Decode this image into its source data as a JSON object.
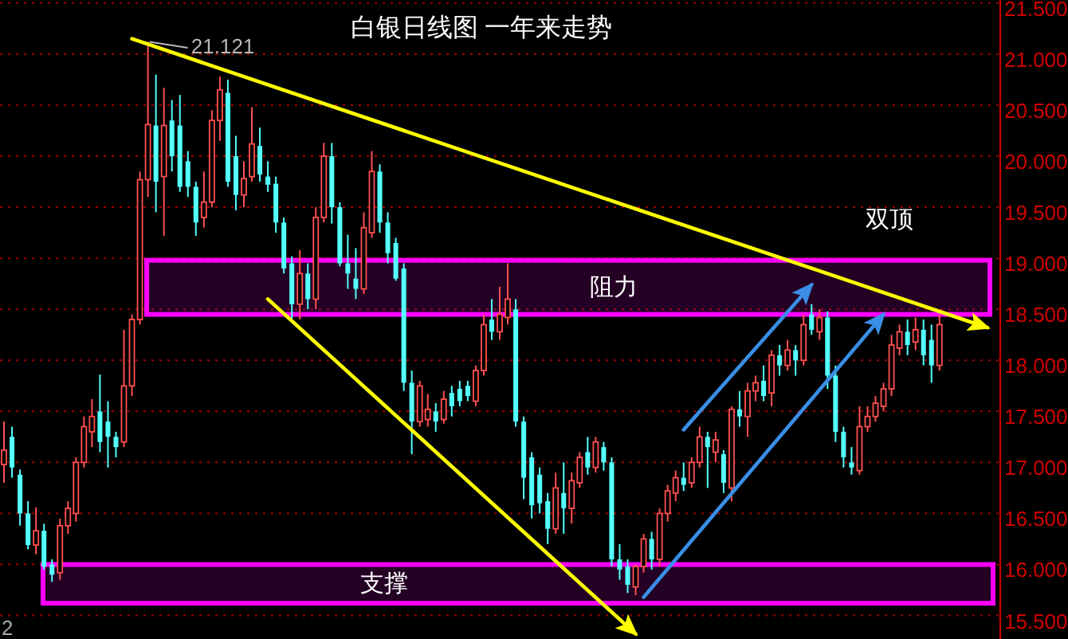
{
  "chart_data": {
    "type": "candlestick",
    "title": "白银日线图 一年来走势",
    "categories": [
      null,
      null,
      null,
      null,
      null,
      null,
      null,
      null,
      null,
      null,
      null,
      null,
      null,
      null,
      null,
      null,
      null,
      null,
      null,
      null,
      null,
      null,
      null,
      null,
      null,
      null,
      null,
      null,
      null,
      null,
      null,
      null,
      null,
      null,
      null,
      null,
      null,
      null,
      null,
      null,
      null,
      null,
      null,
      null,
      null,
      null,
      null,
      null,
      null,
      null,
      null,
      null,
      null,
      null,
      null,
      null,
      null,
      null,
      null,
      null,
      null,
      null,
      null,
      null,
      null,
      null,
      null,
      null,
      null,
      null,
      null,
      null,
      null,
      null,
      null,
      null,
      null,
      null,
      null,
      null,
      null,
      null,
      null,
      null,
      null,
      null,
      null,
      null,
      null,
      null,
      null,
      null,
      null,
      null,
      null,
      null,
      null,
      null,
      null,
      null,
      null,
      null,
      null,
      null,
      null,
      null,
      null,
      null,
      null,
      null,
      null,
      null,
      null,
      null,
      null,
      null,
      null,
      null,
      null,
      null,
      null,
      null,
      null,
      null,
      null
    ],
    "ohlc": [
      [
        16.98,
        17.4,
        16.8,
        17.12
      ],
      [
        17.25,
        17.35,
        16.85,
        16.95
      ],
      [
        16.88,
        16.93,
        16.38,
        16.5
      ],
      [
        16.5,
        16.62,
        16.15,
        16.19
      ],
      [
        16.19,
        16.56,
        16.1,
        16.33
      ],
      [
        16.33,
        16.4,
        15.95,
        15.98
      ],
      [
        16.0,
        16.05,
        15.83,
        15.9
      ],
      [
        15.92,
        16.45,
        15.85,
        16.38
      ],
      [
        16.38,
        16.62,
        16.3,
        16.55
      ],
      [
        16.5,
        17.05,
        16.42,
        17.0
      ],
      [
        17.0,
        17.45,
        16.95,
        17.35
      ],
      [
        17.3,
        17.62,
        17.15,
        17.45
      ],
      [
        17.5,
        17.86,
        17.1,
        17.2
      ],
      [
        17.4,
        17.6,
        16.95,
        17.25
      ],
      [
        17.25,
        17.3,
        17.05,
        17.15
      ],
      [
        17.2,
        18.3,
        17.15,
        17.75
      ],
      [
        17.75,
        18.45,
        17.65,
        18.4
      ],
      [
        18.4,
        19.85,
        18.35,
        19.77
      ],
      [
        19.77,
        21.121,
        19.6,
        20.31
      ],
      [
        20.3,
        20.8,
        19.45,
        19.75
      ],
      [
        19.8,
        20.67,
        19.22,
        20.3
      ],
      [
        20.35,
        20.55,
        19.85,
        20.0
      ],
      [
        20.3,
        20.6,
        19.65,
        19.7
      ],
      [
        19.95,
        20.05,
        19.6,
        19.7
      ],
      [
        19.7,
        19.75,
        19.22,
        19.35
      ],
      [
        19.4,
        19.85,
        19.3,
        19.55
      ],
      [
        19.55,
        20.45,
        19.5,
        20.35
      ],
      [
        20.35,
        20.78,
        20.15,
        20.65
      ],
      [
        20.62,
        20.75,
        19.7,
        19.75
      ],
      [
        20.0,
        20.2,
        19.47,
        19.62
      ],
      [
        19.62,
        19.95,
        19.5,
        19.78
      ],
      [
        19.8,
        20.48,
        19.75,
        20.12
      ],
      [
        20.1,
        20.28,
        19.75,
        19.82
      ],
      [
        19.8,
        19.95,
        19.65,
        19.72
      ],
      [
        19.73,
        19.8,
        19.25,
        19.35
      ],
      [
        19.35,
        19.4,
        18.85,
        18.9
      ],
      [
        18.95,
        19.02,
        18.4,
        18.55
      ],
      [
        18.55,
        19.08,
        18.4,
        18.85
      ],
      [
        18.85,
        18.95,
        18.5,
        18.6
      ],
      [
        18.6,
        19.5,
        18.5,
        19.4
      ],
      [
        19.4,
        20.13,
        19.35,
        20.0
      ],
      [
        20.0,
        20.13,
        19.34,
        19.5
      ],
      [
        19.5,
        19.55,
        18.92,
        18.95
      ],
      [
        18.95,
        19.23,
        18.7,
        18.85
      ],
      [
        18.8,
        19.1,
        18.6,
        18.7
      ],
      [
        18.7,
        19.45,
        18.65,
        19.3
      ],
      [
        19.25,
        20.05,
        19.2,
        19.85
      ],
      [
        19.85,
        19.92,
        19.25,
        19.35
      ],
      [
        19.35,
        19.45,
        18.95,
        19.05
      ],
      [
        19.15,
        19.2,
        18.78,
        18.8
      ],
      [
        18.9,
        18.95,
        17.7,
        17.78
      ],
      [
        17.78,
        17.9,
        17.08,
        17.4
      ],
      [
        17.4,
        17.8,
        17.35,
        17.75
      ],
      [
        17.42,
        17.67,
        17.35,
        17.52
      ],
      [
        17.5,
        17.58,
        17.3,
        17.4
      ],
      [
        17.42,
        17.7,
        17.38,
        17.62
      ],
      [
        17.68,
        17.75,
        17.45,
        17.55
      ],
      [
        17.72,
        17.8,
        17.55,
        17.6
      ],
      [
        17.75,
        17.8,
        17.6,
        17.65
      ],
      [
        17.6,
        17.95,
        17.55,
        17.9
      ],
      [
        17.9,
        18.45,
        17.85,
        18.35
      ],
      [
        18.4,
        18.6,
        18.2,
        18.28
      ],
      [
        18.28,
        18.72,
        18.2,
        18.45
      ],
      [
        18.42,
        18.95,
        18.35,
        18.6
      ],
      [
        18.5,
        18.6,
        17.35,
        17.4
      ],
      [
        17.4,
        17.45,
        16.64,
        16.85
      ],
      [
        17.05,
        17.1,
        16.45,
        16.58
      ],
      [
        16.88,
        16.95,
        16.5,
        16.6
      ],
      [
        16.62,
        16.7,
        16.2,
        16.35
      ],
      [
        16.35,
        16.9,
        16.3,
        16.75
      ],
      [
        16.7,
        17.0,
        16.3,
        16.55
      ],
      [
        16.55,
        16.9,
        16.4,
        16.82
      ],
      [
        16.8,
        17.1,
        16.75,
        17.05
      ],
      [
        17.1,
        17.25,
        16.88,
        16.95
      ],
      [
        16.95,
        17.25,
        16.9,
        17.2
      ],
      [
        17.15,
        17.2,
        16.92,
        17.0
      ],
      [
        17.0,
        17.05,
        15.98,
        16.05
      ],
      [
        16.05,
        16.2,
        15.85,
        15.95
      ],
      [
        15.98,
        16.05,
        15.72,
        15.8
      ],
      [
        15.78,
        16.0,
        15.7,
        15.98
      ],
      [
        15.98,
        16.3,
        15.92,
        16.25
      ],
      [
        16.25,
        16.32,
        15.95,
        16.05
      ],
      [
        16.05,
        16.55,
        15.98,
        16.5
      ],
      [
        16.5,
        16.78,
        16.42,
        16.72
      ],
      [
        16.7,
        16.92,
        16.62,
        16.85
      ],
      [
        16.85,
        17.0,
        16.72,
        16.78
      ],
      [
        16.8,
        17.05,
        16.75,
        17.0
      ],
      [
        17.0,
        17.35,
        16.95,
        17.25
      ],
      [
        17.25,
        17.3,
        16.75,
        17.15
      ],
      [
        17.1,
        17.3,
        17.0,
        17.22
      ],
      [
        17.08,
        17.12,
        16.7,
        16.8
      ],
      [
        16.75,
        17.55,
        16.62,
        17.52
      ],
      [
        17.52,
        17.7,
        17.35,
        17.45
      ],
      [
        17.45,
        17.78,
        17.25,
        17.7
      ],
      [
        17.7,
        17.85,
        17.6,
        17.78
      ],
      [
        17.8,
        17.95,
        17.6,
        17.65
      ],
      [
        17.68,
        18.1,
        17.55,
        18.05
      ],
      [
        18.05,
        18.15,
        17.85,
        17.95
      ],
      [
        17.95,
        18.2,
        17.9,
        18.1
      ],
      [
        18.1,
        18.15,
        17.85,
        18.0
      ],
      [
        18.0,
        18.45,
        17.95,
        18.35
      ],
      [
        18.45,
        18.55,
        18.25,
        18.3
      ],
      [
        18.28,
        18.5,
        18.2,
        18.42
      ],
      [
        18.42,
        18.48,
        17.72,
        17.85
      ],
      [
        17.85,
        17.95,
        17.2,
        17.3
      ],
      [
        17.3,
        17.35,
        16.95,
        17.05
      ],
      [
        17.0,
        17.15,
        16.88,
        16.95
      ],
      [
        16.92,
        17.55,
        16.88,
        17.35
      ],
      [
        17.35,
        17.55,
        17.3,
        17.45
      ],
      [
        17.45,
        17.65,
        17.4,
        17.58
      ],
      [
        17.55,
        17.78,
        17.5,
        17.72
      ],
      [
        17.72,
        18.25,
        17.65,
        18.15
      ],
      [
        18.12,
        18.35,
        18.05,
        18.28
      ],
      [
        18.28,
        18.4,
        18.05,
        18.15
      ],
      [
        18.18,
        18.42,
        18.1,
        18.3
      ],
      [
        18.3,
        18.4,
        17.95,
        18.05
      ],
      [
        18.2,
        18.35,
        17.78,
        17.95
      ],
      [
        17.95,
        18.45,
        17.9,
        18.35
      ],
      null,
      null,
      null,
      null,
      null,
      null,
      null
    ],
    "colors": [
      "#ff5050",
      "#54ffff",
      "#54ffff",
      "#54ffff",
      "#ff5050",
      "#54ffff",
      "#54ffff",
      "#ff5050",
      "#ff5050",
      "#ff5050",
      "#ff5050",
      "#ff5050",
      "#54ffff",
      "#54ffff",
      "#54ffff",
      "#ff5050",
      "#ff5050",
      "#ff5050",
      "#ff5050",
      "#54ffff",
      "#ff5050",
      "#54ffff",
      "#54ffff",
      "#54ffff",
      "#54ffff",
      "#ff5050",
      "#ff5050",
      "#ff5050",
      "#54ffff",
      "#54ffff",
      "#ff5050",
      "#ff5050",
      "#54ffff",
      "#54ffff",
      "#54ffff",
      "#54ffff",
      "#54ffff",
      "#ff5050",
      "#54ffff",
      "#ff5050",
      "#ff5050",
      "#54ffff",
      "#54ffff",
      "#54ffff",
      "#54ffff",
      "#ff5050",
      "#ff5050",
      "#54ffff",
      "#54ffff",
      "#54ffff",
      "#54ffff",
      "#54ffff",
      "#ff5050",
      "#ff5050",
      "#54ffff",
      "#ff5050",
      "#54ffff",
      "#54ffff",
      "#54ffff",
      "#ff5050",
      "#ff5050",
      "#54ffff",
      "#ff5050",
      "#ff5050",
      "#54ffff",
      "#54ffff",
      "#54ffff",
      "#54ffff",
      "#54ffff",
      "#ff5050",
      "#54ffff",
      "#ff5050",
      "#ff5050",
      "#54ffff",
      "#ff5050",
      "#54ffff",
      "#54ffff",
      "#54ffff",
      "#54ffff",
      "#ff5050",
      "#ff5050",
      "#54ffff",
      "#ff5050",
      "#ff5050",
      "#ff5050",
      "#54ffff",
      "#ff5050",
      "#ff5050",
      "#54ffff",
      "#ff5050",
      "#54ffff",
      "#ff5050",
      "#54ffff",
      "#ff5050",
      "#ff5050",
      "#54ffff",
      "#ff5050",
      "#54ffff",
      "#ff5050",
      "#54ffff",
      "#ff5050",
      "#54ffff",
      "#ff5050",
      "#54ffff",
      "#54ffff",
      "#54ffff",
      "#54ffff",
      "#ff5050",
      "#ff5050",
      "#ff5050",
      "#ff5050",
      "#ff5050",
      "#ff5050",
      "#54ffff",
      "#ff5050",
      "#54ffff",
      "#54ffff",
      "#ff5050",
      null,
      null,
      null,
      null,
      null,
      null,
      null
    ],
    "series": [
      {
        "type": "line",
        "color": "#ffff00",
        "values": [
          null,
          null,
          null,
          null,
          null,
          null,
          null,
          null,
          null,
          null,
          null,
          null,
          null,
          null,
          null,
          null,
          21.15,
          null,
          null,
          null,
          null,
          null,
          null,
          null,
          null,
          null,
          null,
          null,
          null,
          null,
          null,
          null,
          null,
          null,
          null,
          null,
          null,
          null,
          null,
          null,
          null,
          null,
          null,
          null,
          null,
          null,
          null,
          null,
          null,
          null,
          null,
          null,
          null,
          null,
          null,
          null,
          null,
          null,
          null,
          null,
          null,
          null,
          null,
          null,
          null,
          null,
          null,
          null,
          null,
          null,
          null,
          null,
          null,
          null,
          null,
          null,
          null,
          null,
          null,
          null,
          null,
          null,
          null,
          null,
          null,
          null,
          null,
          null,
          null,
          null,
          null,
          null,
          null,
          null,
          null,
          null,
          null,
          null,
          null,
          null,
          null,
          null,
          null,
          null,
          null,
          null,
          null,
          null,
          null,
          null,
          null,
          null,
          null,
          null,
          null,
          null,
          null,
          null,
          null,
          null,
          null,
          null,
          null,
          18.32,
          null
        ]
      },
      {
        "type": "line",
        "color": "#ffff00",
        "values": [
          null,
          null,
          null,
          null,
          null,
          null,
          null,
          null,
          null,
          null,
          null,
          null,
          null,
          null,
          null,
          null,
          null,
          null,
          null,
          null,
          null,
          null,
          null,
          null,
          null,
          null,
          null,
          null,
          null,
          null,
          null,
          null,
          null,
          18.6,
          null,
          null,
          null,
          null,
          null,
          null,
          null,
          null,
          null,
          null,
          null,
          null,
          null,
          null,
          null,
          null,
          null,
          null,
          null,
          null,
          null,
          null,
          null,
          null,
          null,
          null,
          null,
          null,
          null,
          null,
          null,
          null,
          null,
          null,
          null,
          null,
          null,
          null,
          null,
          null,
          null,
          null,
          null,
          null,
          null,
          15.32,
          null,
          null,
          null,
          null,
          null,
          null,
          null,
          null,
          null,
          null,
          null,
          null,
          null,
          null,
          null,
          null,
          null,
          null,
          null,
          null,
          null,
          null,
          null,
          null,
          null,
          null,
          null,
          null,
          null,
          null,
          null,
          null,
          null,
          null,
          null,
          null,
          null,
          null,
          null,
          null,
          null,
          null,
          null,
          null,
          null
        ]
      },
      {
        "type": "line",
        "color": "#3a8ee6",
        "values": [
          null,
          null,
          null,
          null,
          null,
          null,
          null,
          null,
          null,
          null,
          null,
          null,
          null,
          null,
          null,
          null,
          null,
          null,
          null,
          null,
          null,
          null,
          null,
          null,
          null,
          null,
          null,
          null,
          null,
          null,
          null,
          null,
          null,
          null,
          null,
          null,
          null,
          null,
          null,
          null,
          null,
          null,
          null,
          null,
          null,
          null,
          null,
          null,
          null,
          null,
          null,
          null,
          null,
          null,
          null,
          null,
          null,
          null,
          null,
          null,
          null,
          null,
          null,
          null,
          null,
          null,
          null,
          null,
          null,
          null,
          null,
          null,
          null,
          null,
          null,
          null,
          null,
          null,
          null,
          null,
          null,
          null,
          null,
          null,
          null,
          17.32,
          null,
          null,
          null,
          null,
          null,
          null,
          null,
          null,
          null,
          null,
          null,
          null,
          null,
          null,
          null,
          18.74,
          null,
          null,
          null,
          null,
          null,
          null,
          null,
          null,
          null,
          null,
          null,
          null,
          null,
          null,
          null,
          null,
          null,
          null,
          null,
          null,
          null,
          null,
          null
        ]
      },
      {
        "type": "line",
        "color": "#3a8ee6",
        "values": [
          null,
          null,
          null,
          null,
          null,
          null,
          null,
          null,
          null,
          null,
          null,
          null,
          null,
          null,
          null,
          null,
          null,
          null,
          null,
          null,
          null,
          null,
          null,
          null,
          null,
          null,
          null,
          null,
          null,
          null,
          null,
          null,
          null,
          null,
          null,
          null,
          null,
          null,
          null,
          null,
          null,
          null,
          null,
          null,
          null,
          null,
          null,
          null,
          null,
          null,
          null,
          null,
          null,
          null,
          null,
          null,
          null,
          null,
          null,
          null,
          null,
          null,
          null,
          null,
          null,
          null,
          null,
          null,
          null,
          null,
          null,
          null,
          null,
          null,
          null,
          null,
          null,
          null,
          null,
          null,
          15.68,
          null,
          null,
          null,
          null,
          null,
          null,
          null,
          null,
          null,
          null,
          null,
          null,
          null,
          null,
          null,
          null,
          null,
          null,
          null,
          null,
          null,
          null,
          null,
          null,
          null,
          null,
          null,
          null,
          null,
          18.45,
          null,
          null,
          null,
          null,
          null,
          null,
          null,
          null,
          null,
          null,
          null,
          null,
          null,
          null
        ]
      }
    ],
    "bands": [
      {
        "axis": "y",
        "from": 18.45,
        "to": 18.98,
        "label": "阻力",
        "color": "#ff00ff"
      },
      {
        "axis": "y",
        "from": 15.62,
        "to": 16.0,
        "label": "支撑",
        "color": "#ff00ff"
      }
    ],
    "annotations": [
      "21.121",
      "双顶",
      "2"
    ],
    "ylim": [
      15.27,
      21.53
    ],
    "yticks": [
      {
        "value": 15.5,
        "label": "15.500"
      },
      {
        "value": 16.0,
        "label": "16.000"
      },
      {
        "value": 16.5,
        "label": "16.500"
      },
      {
        "value": 17.0,
        "label": "17.000"
      },
      {
        "value": 17.5,
        "label": "17.500"
      },
      {
        "value": 18.0,
        "label": "18.000"
      },
      {
        "value": 18.5,
        "label": "18.500"
      },
      {
        "value": 19.0,
        "label": "19.000"
      },
      {
        "value": 19.5,
        "label": "19.500"
      },
      {
        "value": 20.0,
        "label": "20.000"
      },
      {
        "value": 20.5,
        "label": "20.500"
      },
      {
        "value": 21.0,
        "label": "21.000"
      },
      {
        "value": 21.5,
        "label": "21.500"
      }
    ],
    "grid": "y",
    "tick_labels": "y"
  }
}
